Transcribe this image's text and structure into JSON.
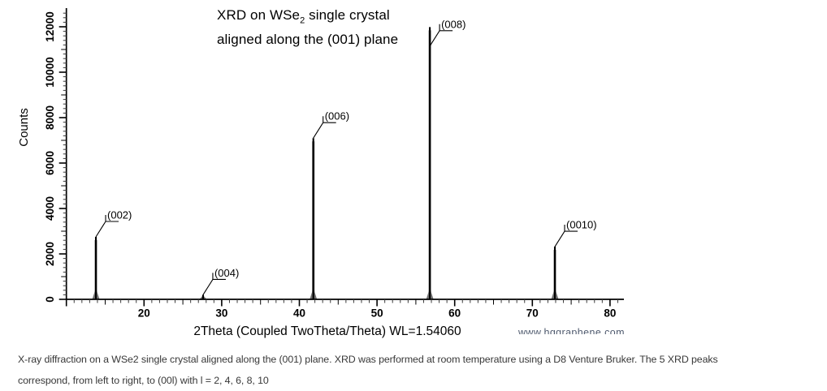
{
  "chart_data": {
    "type": "line",
    "title": {
      "prefix": "XRD on WSe",
      "subscript": "2",
      "suffix": " single crystal",
      "line2": "aligned along the (001) plane"
    },
    "xlabel": "2Theta (Coupled TwoTheta/Theta) WL=1.54060",
    "ylabel": "Counts",
    "xlim": [
      10,
      81.9
    ],
    "ylim": [
      0,
      12820
    ],
    "x_major_ticks": [
      20,
      30,
      40,
      50,
      60,
      70,
      80
    ],
    "x_minor_step": 1,
    "x_medium_step": 5,
    "y_major_ticks": [
      0,
      2000,
      4000,
      6000,
      8000,
      10000,
      12000
    ],
    "y_minor_step": 200,
    "y_medium_step": 1000,
    "grid": false,
    "legend": false,
    "peaks": [
      {
        "label": "(002)",
        "two_theta": 13.8,
        "counts": 2750
      },
      {
        "label": "(004)",
        "two_theta": 27.6,
        "counts": 200
      },
      {
        "label": "(006)",
        "two_theta": 41.8,
        "counts": 7100
      },
      {
        "label": "(008)",
        "two_theta": 56.8,
        "counts": 11985,
        "attach_counts": 11150
      },
      {
        "label": "(0010)",
        "two_theta": 72.9,
        "counts": 2320
      }
    ]
  },
  "watermark": {
    "text": "www.hqgraphene.com"
  },
  "caption": {
    "lines": [
      "X-ray diffraction on a WSe2 single crystal aligned along the (001) plane. XRD was performed at room temperature using a D8 Venture Bruker. The 5 XRD peaks",
      "correspond, from left to right, to (00l) with l = 2, 4, 6, 8, 10"
    ]
  },
  "colors": {
    "axis": "#000000",
    "tick_minor": "#3a3a3a",
    "peak_line": "#000000",
    "peak_halo": "#9a9a9a",
    "peak_base": "#6f6f6f",
    "callout": "#000000",
    "text": "#000000"
  }
}
